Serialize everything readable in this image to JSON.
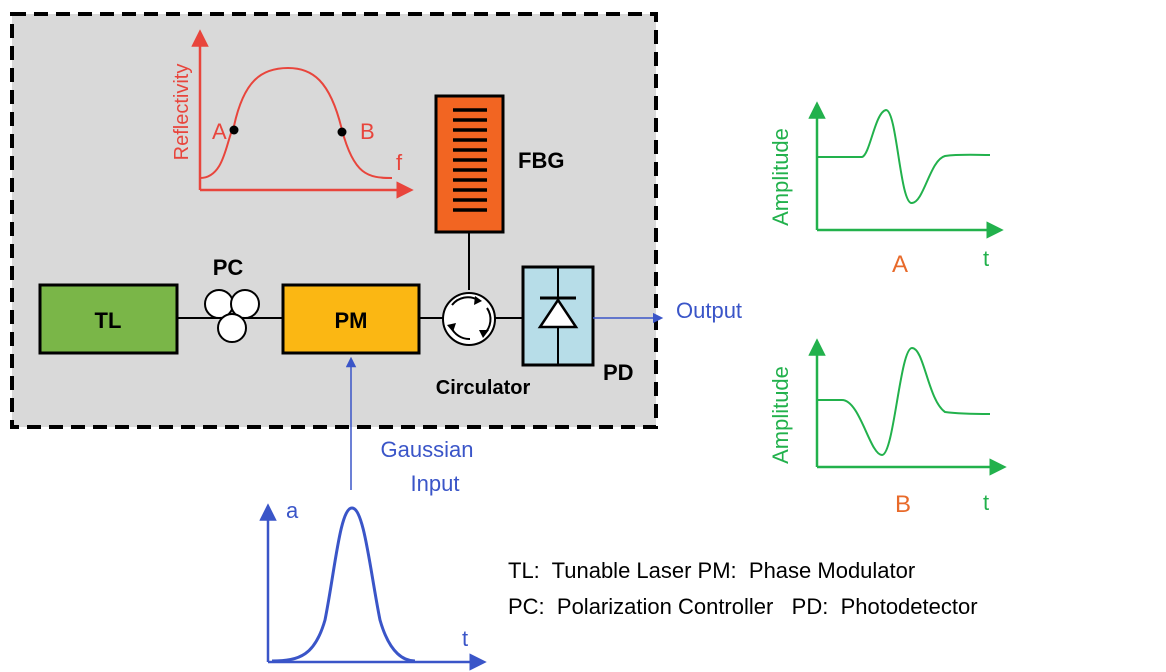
{
  "colors": {
    "panel_bg": "#d9d9d9",
    "red": "#e8453c",
    "orange": "#e86a2a",
    "green": "#22b14c",
    "blue": "#3a55c8",
    "tl_fill": "#7ab648",
    "pm_fill": "#fbb713",
    "pd_fill": "#b7dde8",
    "fbg_fill": "#f26522"
  },
  "components": {
    "tl": "TL",
    "pc": "PC",
    "pm": "PM",
    "circulator": "Circulator",
    "pd": "PD",
    "fbg": "FBG"
  },
  "reflectivity_plot": {
    "ylabel": "Reflectivity",
    "xlabel": "f",
    "point_a": "A",
    "point_b": "B"
  },
  "signals": {
    "output": "Output",
    "input_line1": "Gaussian",
    "input_line2": "Input"
  },
  "output_plots": [
    {
      "ylabel": "Amplitude",
      "xlabel": "t",
      "caption": "A"
    },
    {
      "ylabel": "Amplitude",
      "xlabel": "t",
      "caption": "B"
    }
  ],
  "input_plot": {
    "ylabel": "a",
    "xlabel": "t"
  },
  "legend": {
    "line1": "TL:  Tunable Laser PM:  Phase Modulator",
    "line2": "PC:  Polarization Controller   PD:  Photodetector"
  }
}
